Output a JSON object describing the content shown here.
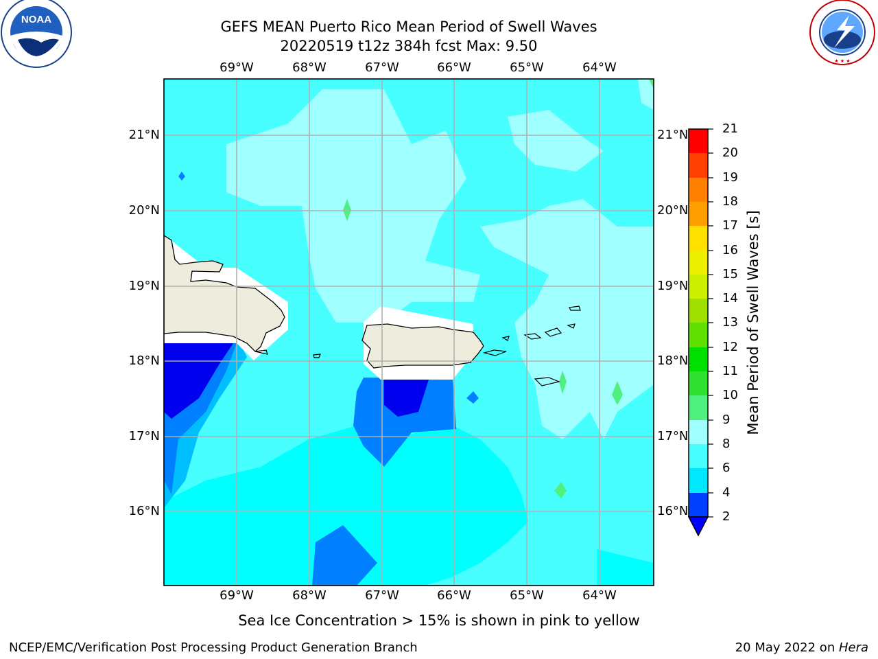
{
  "title": {
    "line1": "GEFS MEAN Puerto Rico Mean Period of Swell Waves",
    "line2": "20220519 t12z 384h fcst   Max: 9.50"
  },
  "logos": {
    "noaa_text": "NOAA",
    "noaa_ring_text": "NATIONAL OCEANIC AND ATMOSPHERIC ADMINISTRATION · U.S. DEPARTMENT OF COMMERCE",
    "nws_ring_text": "NATIONAL WEATHER SERVICE"
  },
  "map": {
    "lon_labels": [
      "69°W",
      "68°W",
      "67°W",
      "66°W",
      "65°W",
      "64°W"
    ],
    "lat_labels": [
      "21°N",
      "20°N",
      "19°N",
      "18°N",
      "17°N",
      "16°N"
    ],
    "regions": [
      "Hispaniola",
      "Puerto Rico",
      "Virgin Islands"
    ],
    "colors": {
      "land": "#eeecdc",
      "gridlines": "#b0b0b0",
      "field_background": "#48ffff"
    }
  },
  "colorbar": {
    "title": "Mean Period of Swell Waves [s]",
    "ticks": [
      "2",
      "4",
      "6",
      "8",
      "9",
      "10",
      "11",
      "12",
      "13",
      "14",
      "15",
      "16",
      "17",
      "18",
      "19",
      "20",
      "21"
    ],
    "colors": [
      "#0040ff",
      "#00e8ff",
      "#48ffff",
      "#a0ffff",
      "#50f080",
      "#30e030",
      "#00e000",
      "#60e000",
      "#a0e000",
      "#ccf000",
      "#ecf000",
      "#ffe000",
      "#ffc000",
      "#ffa000",
      "#ff8000",
      "#ff4000",
      "#ff0000"
    ],
    "under_color": "#0000ff"
  },
  "footer": {
    "note": "Sea Ice Concentration > 15% is shown in pink to yellow",
    "credit": "NCEP/EMC/Verification Post Processing Product Generation Branch",
    "date": "20 May 2022 on ",
    "machine": "Hera"
  }
}
